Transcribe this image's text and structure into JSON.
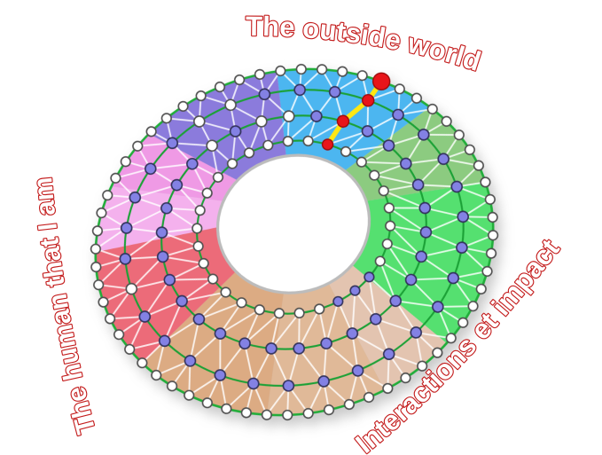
{
  "diagram": {
    "labels": [
      {
        "id": "outside-world",
        "text": "The outside world"
      },
      {
        "id": "human-that-i-am",
        "text": "The human that I am"
      },
      {
        "id": "interactions-impact",
        "text": "Interactions et impact"
      }
    ],
    "label_style": {
      "fill": "#ffffff",
      "outline": "#c41e1e"
    },
    "sectors": [
      {
        "name": "blue",
        "color": "#4cb6f0",
        "start": 7,
        "end": 55
      },
      {
        "name": "green-muted",
        "color": "#8ccb80",
        "start": 55,
        "end": 86
      },
      {
        "name": "green-bright",
        "color": "#55e070",
        "start": 86,
        "end": 142
      },
      {
        "name": "tan-light",
        "color": "#e3c4b0",
        "start": 142,
        "end": 165
      },
      {
        "name": "tan-mid",
        "color": "#e0b998",
        "start": 165,
        "end": 200
      },
      {
        "name": "tan-dark",
        "color": "#dcab83",
        "start": 200,
        "end": 242
      },
      {
        "name": "red",
        "color": "#ec6b79",
        "start": 242,
        "end": 283
      },
      {
        "name": "pink-light",
        "color": "#f4b1ed",
        "start": 283,
        "end": 305
      },
      {
        "name": "pink-magenta",
        "color": "#ef9ae5",
        "start": 305,
        "end": 325
      },
      {
        "name": "purple",
        "color": "#8b7bdc",
        "start": 325,
        "end": 367
      }
    ],
    "rings": [
      {
        "id": "inner",
        "count": 30,
        "phase": 9,
        "node_default": "white",
        "override_color": "purple",
        "override_angles": [
          140,
          152,
          164
        ]
      },
      {
        "id": "ring3",
        "count": 30,
        "phase": 10,
        "node_default": "purple",
        "override_color": "white",
        "override_angles": [
          337,
          358,
          8
        ]
      },
      {
        "id": "ring2",
        "count": 30,
        "phase": 2,
        "node_default": "purple",
        "override_color": "white",
        "override_angles": [
          265,
          342,
          353
        ]
      },
      {
        "id": "outer",
        "count": 60,
        "phase": 2,
        "node_default": "white",
        "override_color": "white",
        "override_angles": []
      }
    ],
    "highlight": {
      "line_color": "#ffe712",
      "node_color": "#e8151a",
      "angles": {
        "outer": 38,
        "ring2": 38,
        "ring3": 34,
        "inner": 33
      }
    },
    "palette": {
      "ring_line": "#1ba136",
      "outer_edge": "#21ad3a",
      "mesh_line": "#ffffff",
      "node_purple": "#8381e4",
      "node_white": "#ffffff",
      "node_stroke_purple": "#33335c",
      "node_stroke_white": "#4f4f4f",
      "node_stroke_red": "#9b0b0b",
      "hole_fill": "#ffffff",
      "hole_stroke": "#bcbcbc"
    }
  }
}
